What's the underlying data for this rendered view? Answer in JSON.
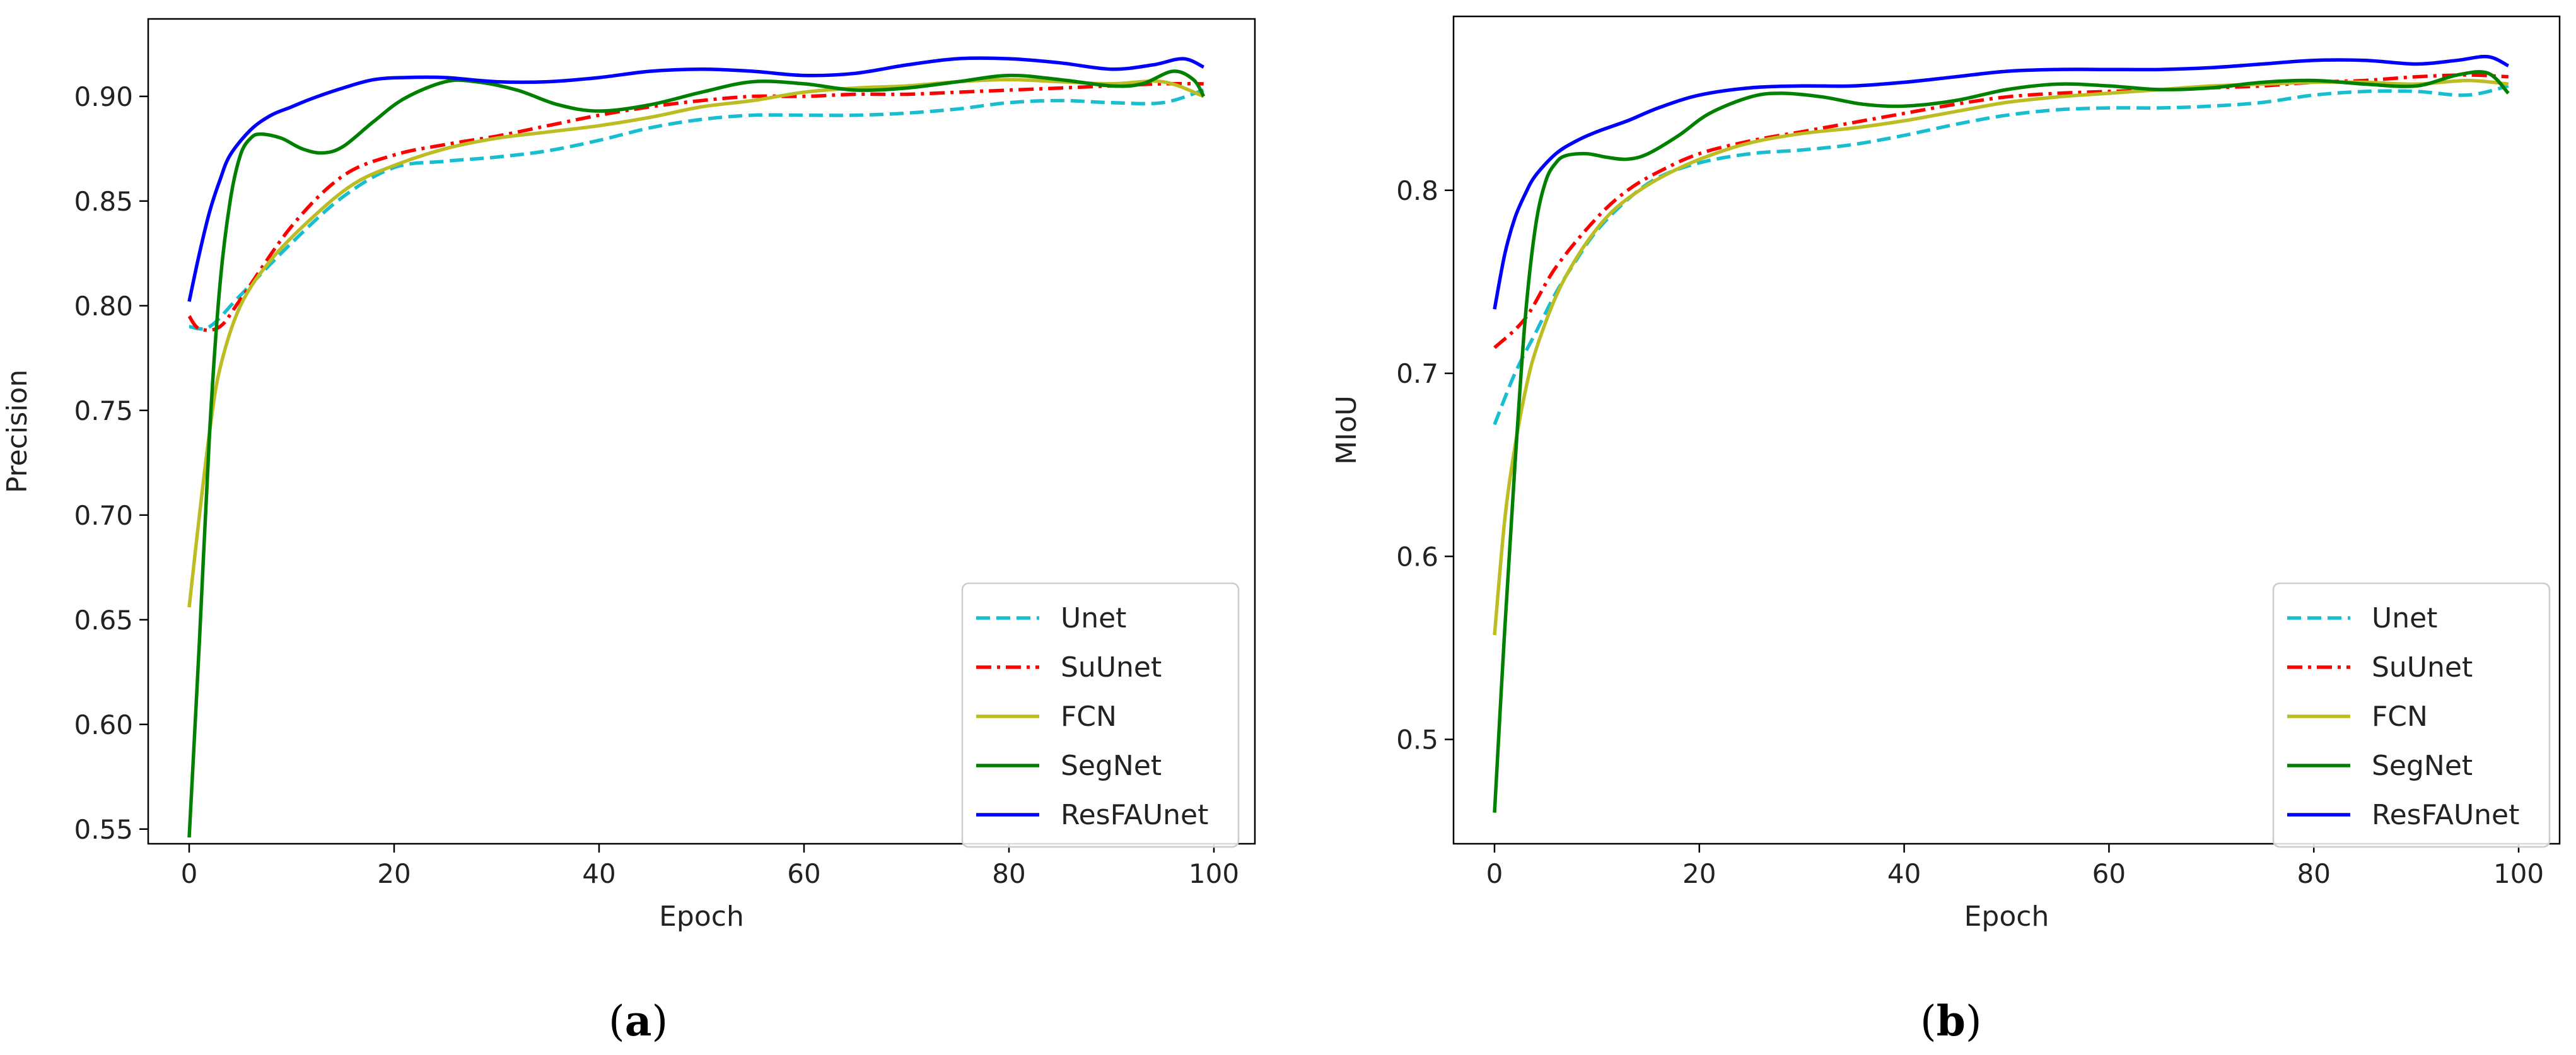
{
  "colors": {
    "Unet": "#17becf",
    "SuUnet": "#ff0000",
    "FCN": "#bcbd22",
    "SegNet": "#008000",
    "ResFAUnet": "#0000ff"
  },
  "captions": [
    {
      "open": "(",
      "letter": "a",
      "close": ")"
    },
    {
      "open": "(",
      "letter": "b",
      "close": ")"
    }
  ],
  "chart_data": [
    {
      "type": "line",
      "title": "",
      "xlabel": "Epoch",
      "ylabel": "Precision",
      "xlim": [
        -4,
        104
      ],
      "ylim": [
        0.543,
        0.937
      ],
      "xticks": [
        0,
        20,
        40,
        60,
        80,
        100
      ],
      "xtick_labels": [
        "0",
        "20",
        "40",
        "60",
        "80",
        "100"
      ],
      "yticks": [
        0.55,
        0.6,
        0.65,
        0.7,
        0.75,
        0.8,
        0.85,
        0.9
      ],
      "ytick_labels": [
        "0.55",
        "0.60",
        "0.65",
        "0.70",
        "0.75",
        "0.80",
        "0.85",
        "0.90"
      ],
      "legend": "lower-right",
      "series": [
        {
          "name": "Unet",
          "style": "dashed",
          "x": [
            0,
            2,
            5,
            10,
            15,
            20,
            25,
            30,
            35,
            40,
            45,
            50,
            55,
            60,
            65,
            70,
            75,
            80,
            85,
            90,
            95,
            99
          ],
          "y": [
            0.79,
            0.79,
            0.805,
            0.83,
            0.852,
            0.866,
            0.869,
            0.871,
            0.874,
            0.879,
            0.885,
            0.889,
            0.891,
            0.891,
            0.891,
            0.892,
            0.894,
            0.897,
            0.898,
            0.897,
            0.897,
            0.903
          ]
        },
        {
          "name": "SuUnet",
          "style": "dashdot",
          "x": [
            0,
            1,
            3,
            5,
            10,
            15,
            20,
            25,
            30,
            35,
            40,
            45,
            50,
            55,
            60,
            65,
            70,
            75,
            80,
            85,
            90,
            95,
            99
          ],
          "y": [
            0.795,
            0.789,
            0.79,
            0.803,
            0.838,
            0.862,
            0.872,
            0.877,
            0.881,
            0.886,
            0.891,
            0.895,
            0.898,
            0.9,
            0.9,
            0.901,
            0.901,
            0.902,
            0.903,
            0.904,
            0.905,
            0.906,
            0.906
          ]
        },
        {
          "name": "FCN",
          "style": "solid",
          "x": [
            0,
            1,
            2,
            3,
            5,
            8,
            12,
            16,
            20,
            25,
            30,
            35,
            40,
            45,
            50,
            55,
            60,
            65,
            70,
            75,
            80,
            85,
            90,
            95,
            99
          ],
          "y": [
            0.656,
            0.7,
            0.74,
            0.77,
            0.8,
            0.822,
            0.842,
            0.858,
            0.867,
            0.875,
            0.88,
            0.883,
            0.886,
            0.89,
            0.895,
            0.898,
            0.902,
            0.904,
            0.905,
            0.907,
            0.908,
            0.907,
            0.906,
            0.907,
            0.9
          ]
        },
        {
          "name": "SegNet",
          "style": "solid",
          "x": [
            0,
            1,
            2,
            3,
            4,
            5,
            6,
            7,
            9,
            11,
            13,
            15,
            18,
            21,
            25,
            28,
            32,
            36,
            40,
            45,
            50,
            55,
            60,
            65,
            70,
            75,
            80,
            85,
            90,
            93,
            96,
            98,
            99
          ],
          "y": [
            0.546,
            0.64,
            0.74,
            0.81,
            0.85,
            0.872,
            0.88,
            0.882,
            0.88,
            0.875,
            0.873,
            0.876,
            0.888,
            0.899,
            0.907,
            0.907,
            0.903,
            0.896,
            0.893,
            0.896,
            0.902,
            0.907,
            0.906,
            0.903,
            0.904,
            0.907,
            0.91,
            0.908,
            0.905,
            0.906,
            0.912,
            0.908,
            0.9
          ]
        },
        {
          "name": "ResFAUnet",
          "style": "solid",
          "x": [
            0,
            1,
            2,
            3,
            4,
            6,
            8,
            10,
            12,
            15,
            18,
            21,
            25,
            30,
            35,
            40,
            45,
            50,
            55,
            60,
            65,
            70,
            75,
            80,
            85,
            90,
            94,
            97,
            99
          ],
          "y": [
            0.802,
            0.825,
            0.845,
            0.86,
            0.872,
            0.884,
            0.891,
            0.895,
            0.899,
            0.904,
            0.908,
            0.909,
            0.909,
            0.907,
            0.907,
            0.909,
            0.912,
            0.913,
            0.912,
            0.91,
            0.911,
            0.915,
            0.918,
            0.918,
            0.916,
            0.913,
            0.915,
            0.918,
            0.914
          ]
        }
      ]
    },
    {
      "type": "line",
      "title": "",
      "xlabel": "Epoch",
      "ylabel": "MIoU",
      "xlim": [
        -4,
        104
      ],
      "ylim": [
        0.443,
        0.895
      ],
      "xticks": [
        0,
        20,
        40,
        60,
        80,
        100
      ],
      "xtick_labels": [
        "0",
        "20",
        "40",
        "60",
        "80",
        "100"
      ],
      "yticks": [
        0.5,
        0.6,
        0.7,
        0.8
      ],
      "ytick_labels": [
        "0.5",
        "0.6",
        "0.7",
        "0.8"
      ],
      "legend": "lower-right",
      "series": [
        {
          "name": "Unet",
          "style": "dashed",
          "x": [
            0,
            2,
            4,
            6,
            8,
            10,
            13,
            16,
            20,
            25,
            30,
            35,
            40,
            45,
            50,
            55,
            60,
            65,
            70,
            75,
            80,
            85,
            90,
            95,
            99
          ],
          "y": [
            0.672,
            0.7,
            0.722,
            0.744,
            0.762,
            0.778,
            0.795,
            0.807,
            0.815,
            0.82,
            0.822,
            0.825,
            0.83,
            0.836,
            0.841,
            0.844,
            0.845,
            0.845,
            0.846,
            0.848,
            0.852,
            0.854,
            0.854,
            0.852,
            0.857
          ]
        },
        {
          "name": "SuUnet",
          "style": "dashdot",
          "x": [
            0,
            3,
            6,
            10,
            13,
            16,
            20,
            25,
            30,
            35,
            40,
            45,
            50,
            55,
            60,
            65,
            70,
            75,
            80,
            85,
            90,
            95,
            99
          ],
          "y": [
            0.714,
            0.73,
            0.758,
            0.785,
            0.8,
            0.81,
            0.82,
            0.827,
            0.832,
            0.837,
            0.842,
            0.847,
            0.851,
            0.853,
            0.854,
            0.855,
            0.856,
            0.857,
            0.859,
            0.86,
            0.862,
            0.863,
            0.862
          ]
        },
        {
          "name": "FCN",
          "style": "solid",
          "x": [
            0,
            1,
            2,
            3,
            4,
            6,
            8,
            10,
            12,
            15,
            18,
            21,
            25,
            30,
            35,
            40,
            45,
            50,
            55,
            60,
            65,
            70,
            75,
            80,
            85,
            90,
            95,
            99
          ],
          "y": [
            0.557,
            0.62,
            0.66,
            0.69,
            0.712,
            0.742,
            0.763,
            0.779,
            0.791,
            0.803,
            0.812,
            0.819,
            0.826,
            0.831,
            0.834,
            0.838,
            0.843,
            0.848,
            0.851,
            0.853,
            0.855,
            0.857,
            0.858,
            0.859,
            0.859,
            0.858,
            0.86,
            0.858
          ]
        },
        {
          "name": "SegNet",
          "style": "solid",
          "x": [
            0,
            1,
            2,
            3,
            4,
            5,
            6,
            7,
            9,
            11,
            13,
            15,
            18,
            21,
            25,
            28,
            32,
            36,
            40,
            45,
            50,
            55,
            60,
            65,
            70,
            75,
            80,
            85,
            90,
            94,
            97,
            99
          ],
          "y": [
            0.46,
            0.56,
            0.65,
            0.73,
            0.78,
            0.805,
            0.815,
            0.819,
            0.82,
            0.818,
            0.817,
            0.82,
            0.83,
            0.842,
            0.851,
            0.853,
            0.851,
            0.847,
            0.846,
            0.849,
            0.855,
            0.858,
            0.857,
            0.855,
            0.856,
            0.859,
            0.86,
            0.858,
            0.857,
            0.863,
            0.864,
            0.853
          ]
        },
        {
          "name": "ResFAUnet",
          "style": "solid",
          "x": [
            0,
            1,
            2,
            3,
            4,
            6,
            8,
            10,
            13,
            16,
            20,
            25,
            30,
            35,
            40,
            45,
            50,
            55,
            60,
            65,
            70,
            75,
            80,
            85,
            90,
            94,
            97,
            99
          ],
          "y": [
            0.735,
            0.765,
            0.785,
            0.798,
            0.808,
            0.82,
            0.827,
            0.832,
            0.838,
            0.845,
            0.852,
            0.856,
            0.857,
            0.857,
            0.859,
            0.862,
            0.865,
            0.866,
            0.866,
            0.866,
            0.867,
            0.869,
            0.871,
            0.871,
            0.869,
            0.871,
            0.873,
            0.868
          ]
        }
      ]
    }
  ]
}
